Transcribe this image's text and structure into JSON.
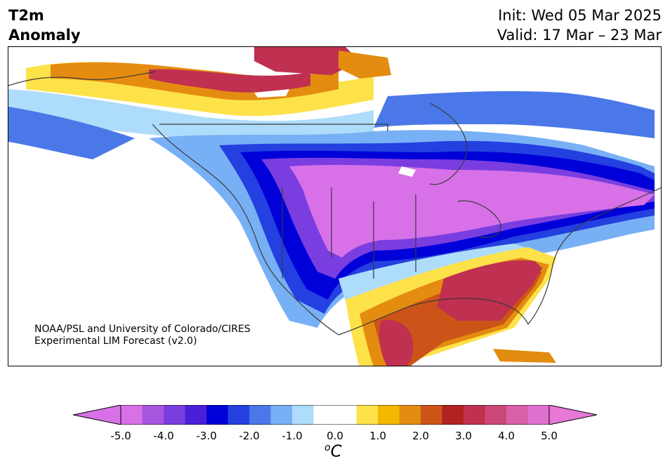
{
  "title": {
    "line1": "T2m",
    "line2": "Anomaly"
  },
  "init_text": "Init: Wed 05 Mar 2025",
  "valid_text": "Valid: 17 Mar – 23 Mar",
  "credit": {
    "line1": "NOAA/PSL and University of Colorado/CIRES",
    "line2": "Experimental LIM Forecast (v2.0)"
  },
  "colorbar": {
    "unit_sup": "o",
    "unit_main": "C",
    "ticks": [
      "-5.0",
      "-4.0",
      "-3.0",
      "-2.0",
      "-1.0",
      "0.0",
      "1.0",
      "2.0",
      "3.0",
      "4.0",
      "5.0"
    ],
    "colors": [
      "#d870e8",
      "#a855e0",
      "#7a3ee0",
      "#4a1fd8",
      "#0000d8",
      "#2440e0",
      "#4a78e8",
      "#78b0f5",
      "#aedcfb",
      "#ffffff",
      "#ffffff",
      "#fde24a",
      "#f5b800",
      "#e48c10",
      "#cc5418",
      "#b22222",
      "#c03050",
      "#cc4878",
      "#d860a8",
      "#e070d0"
    ],
    "under_color": "#d870e8",
    "over_color": "#e878d8"
  },
  "map_colors": {
    "purple_light": "#d870e8",
    "purple_mid": "#a855e0",
    "purple_dark": "#7a3ee0",
    "blue_dark": "#0000d8",
    "blue_mid": "#2440e0",
    "blue_light": "#4a78e8",
    "blue_pale": "#78b0f5",
    "blue_faint": "#aedcfb",
    "yellow": "#fde24a",
    "gold": "#f5b800",
    "orange": "#e48c10",
    "rust": "#cc5418",
    "red": "#b22222",
    "crimson": "#c03050",
    "pink": "#cc4878"
  }
}
